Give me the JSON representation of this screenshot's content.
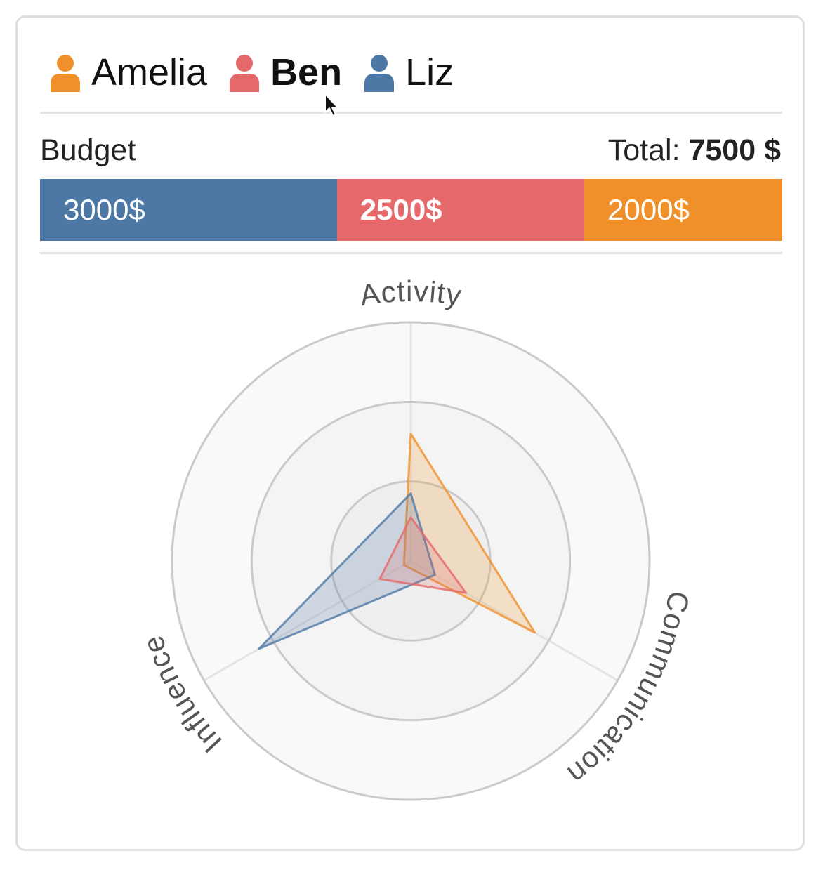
{
  "legend": {
    "items": [
      {
        "name": "Amelia",
        "color": "#f0902b",
        "icon": "user-icon"
      },
      {
        "name": "Ben",
        "color": "#e5686a",
        "icon": "user-icon",
        "active": true
      },
      {
        "name": "Liz",
        "color": "#4d78a6",
        "icon": "user-icon"
      }
    ]
  },
  "budget": {
    "label": "Budget",
    "total_label": "Total:",
    "total_value": "7500 $",
    "segments": [
      {
        "owner": "Liz",
        "value": 3000,
        "label": "3000$",
        "color": "#4d78a6"
      },
      {
        "owner": "Ben",
        "value": 2500,
        "label": "2500$",
        "color": "#e5686a",
        "active": true
      },
      {
        "owner": "Amelia",
        "value": 2000,
        "label": "2000$",
        "color": "#f0902b"
      }
    ]
  },
  "chart_data": {
    "type": "radar",
    "axes": [
      "Activity",
      "Communication",
      "Influence"
    ],
    "rmax": 3,
    "rings": [
      1,
      2,
      3
    ],
    "series": [
      {
        "name": "Amelia",
        "color": "#f0902b",
        "values": [
          1.6,
          1.8,
          0.1
        ]
      },
      {
        "name": "Liz",
        "color": "#4d78a6",
        "values": [
          0.85,
          0.35,
          2.2
        ]
      },
      {
        "name": "Ben",
        "color": "#e5686a",
        "values": [
          0.55,
          0.8,
          0.45
        ]
      }
    ]
  }
}
